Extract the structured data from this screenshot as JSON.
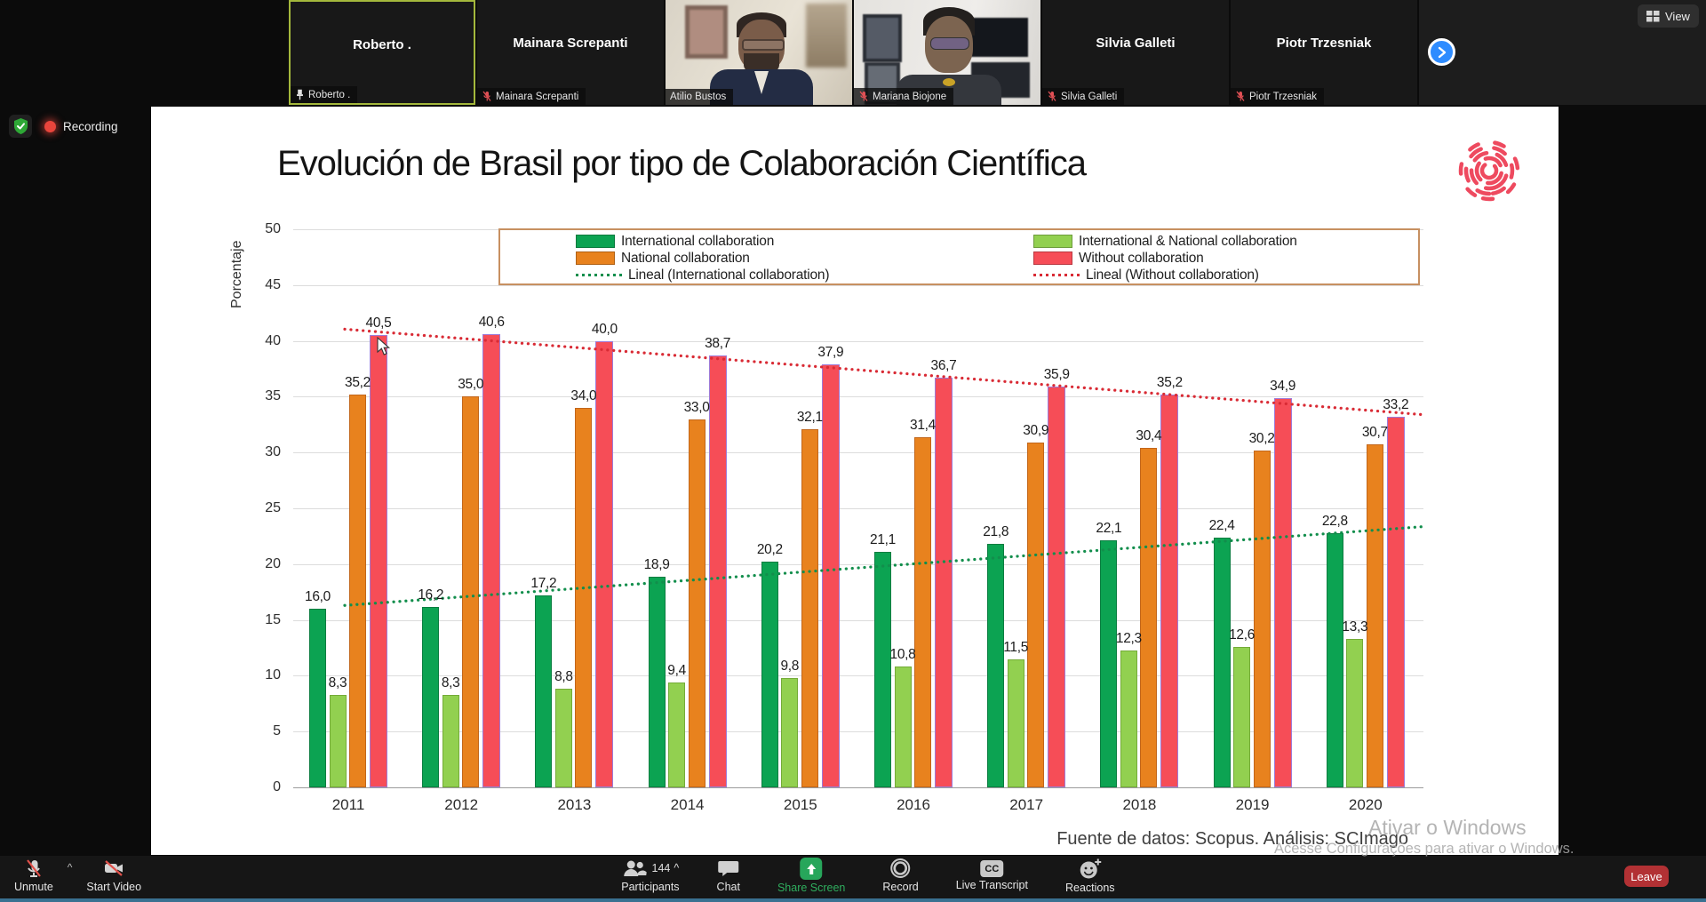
{
  "meeting": {
    "view_label": "View",
    "recording_label": "Recording",
    "participants": [
      {
        "name": "Roberto .",
        "label": "Roberto .",
        "video": false,
        "active": true,
        "label_icon": "pin"
      },
      {
        "name": "Mainara Screpanti",
        "label": "Mainara Screpanti",
        "video": false,
        "active": false,
        "label_icon": "mic-off"
      },
      {
        "name": "Atilio Bustos",
        "label": "Atilio Bustos",
        "video": true,
        "video_style": "atilio",
        "active": false,
        "label_icon": "none"
      },
      {
        "name": "Mariana Biojone",
        "label": "Mariana Biojone",
        "video": true,
        "video_style": "mariana",
        "active": false,
        "label_icon": "mic-off"
      },
      {
        "name": "Silvia Galleti",
        "label": "Silvia Galleti",
        "video": false,
        "active": false,
        "label_icon": "mic-off"
      },
      {
        "name": "Piotr Trzesniak",
        "label": "Piotr Trzesniak",
        "video": false,
        "active": false,
        "label_icon": "mic-off"
      }
    ]
  },
  "slide": {
    "title": "Evolución de Brasil por tipo de Colaboración Científica",
    "watermark_line1": "Ativar o Windows",
    "watermark_line2": "Acesse Configurações para ativar o Windows."
  },
  "chart_data": {
    "type": "bar",
    "title": "Evolución de Brasil por tipo de Colaboración Científica",
    "ylabel": "Porcentaje",
    "ylim": [
      0,
      50
    ],
    "ytick_step": 5,
    "grid": true,
    "legend_position": "top",
    "categories": [
      "2011",
      "2012",
      "2013",
      "2014",
      "2015",
      "2016",
      "2017",
      "2018",
      "2019",
      "2020"
    ],
    "series": [
      {
        "name": "International collaboration",
        "color": "#0ca352",
        "border": "#0a7d40",
        "values": [
          16.0,
          16.2,
          17.2,
          18.9,
          20.2,
          21.1,
          21.8,
          22.1,
          22.4,
          22.8
        ]
      },
      {
        "name": "International & National collaboration",
        "color": "#92d050",
        "border": "#74ab38",
        "values": [
          8.3,
          8.3,
          8.8,
          9.4,
          9.8,
          10.8,
          11.5,
          12.3,
          12.6,
          13.3
        ]
      },
      {
        "name": "National collaboration",
        "color": "#e8821e",
        "border": "#c2661a",
        "values": [
          35.2,
          35.0,
          34.0,
          33.0,
          32.1,
          31.4,
          30.9,
          30.4,
          30.2,
          30.7
        ]
      },
      {
        "name": "Without collaboration",
        "color": "#f64d57",
        "border": "#9d7bd8",
        "values": [
          40.5,
          40.6,
          40.0,
          38.7,
          37.9,
          36.7,
          35.9,
          35.2,
          34.9,
          33.2
        ]
      }
    ],
    "trendlines": [
      {
        "name": "Lineal (International collaboration)",
        "color": "#128e4c",
        "start": 16.3,
        "end": 23.35
      },
      {
        "name": "Lineal (Without collaboration)",
        "color": "#d92b35",
        "start": 41.05,
        "end": 33.4
      }
    ],
    "legend": {
      "col1": [
        {
          "label": "International collaboration",
          "swatch": "#0ca352"
        },
        {
          "label": "National collaboration",
          "swatch": "#e8821e"
        },
        {
          "label": "Lineal (International collaboration)",
          "line": "#128e4c"
        }
      ],
      "col2": [
        {
          "label": "International & National collaboration",
          "swatch": "#92d050"
        },
        {
          "label": "Without collaboration",
          "swatch": "#f64d57"
        },
        {
          "label": "Lineal (Without collaboration)",
          "line": "#d92b35"
        }
      ]
    },
    "source_note": "Fuente de datos: Scopus. Análisis: SCImago"
  },
  "toolbar": {
    "unmute": "Unmute",
    "start_video": "Start Video",
    "leave": "Leave",
    "center_items": [
      {
        "id": "participants",
        "label": "Participants",
        "count": "144"
      },
      {
        "id": "chat",
        "label": "Chat"
      },
      {
        "id": "share",
        "label": "Share Screen",
        "accent": true
      },
      {
        "id": "record",
        "label": "Record"
      },
      {
        "id": "cc",
        "label": "Live Transcript"
      },
      {
        "id": "reactions",
        "label": "Reactions"
      }
    ]
  }
}
